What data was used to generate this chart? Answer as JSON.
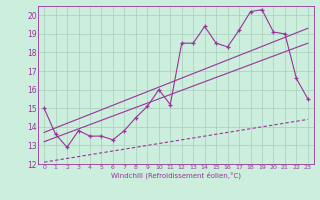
{
  "background_color": "#cceedd",
  "grid_color": "#aaccbb",
  "line_color": "#993399",
  "xlabel": "Windchill (Refroidissement éolien,°C)",
  "xlim": [
    -0.5,
    23.5
  ],
  "ylim": [
    12,
    20.5
  ],
  "yticks": [
    12,
    13,
    14,
    15,
    16,
    17,
    18,
    19,
    20
  ],
  "xticks": [
    0,
    1,
    2,
    3,
    4,
    5,
    6,
    7,
    8,
    9,
    10,
    11,
    12,
    13,
    14,
    15,
    16,
    17,
    18,
    19,
    20,
    21,
    22,
    23
  ],
  "line1_x": [
    0,
    1,
    2,
    3,
    4,
    5,
    6,
    7,
    8,
    9,
    10,
    11,
    12,
    13,
    14,
    15,
    16,
    17,
    18,
    19,
    20,
    21,
    22,
    23
  ],
  "line1_y": [
    15.0,
    13.6,
    12.9,
    13.8,
    13.5,
    13.5,
    13.3,
    13.8,
    14.5,
    15.1,
    16.0,
    15.2,
    18.5,
    18.5,
    19.4,
    18.5,
    18.3,
    19.2,
    20.2,
    20.3,
    19.1,
    19.0,
    16.6,
    15.5
  ],
  "line2_x": [
    0,
    23
  ],
  "line2_y": [
    13.2,
    18.5
  ],
  "line3_x": [
    0,
    23
  ],
  "line3_y": [
    13.7,
    19.3
  ],
  "line4_x": [
    0,
    23
  ],
  "line4_y": [
    12.1,
    14.4
  ]
}
